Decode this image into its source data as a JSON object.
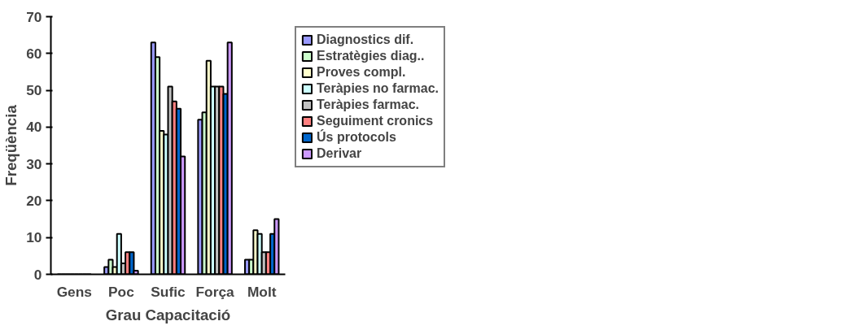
{
  "chart_data": {
    "type": "bar",
    "xlabel": "Grau Capacitació",
    "ylabel": "Freqüència",
    "categories": [
      "Gens",
      "Poc",
      "Sufic",
      "Força",
      "Molt"
    ],
    "ylim": [
      0,
      70
    ],
    "yticks": [
      0,
      10,
      20,
      30,
      40,
      50,
      60,
      70
    ],
    "grid": false,
    "legend": "right",
    "series": [
      {
        "name": "Diagnostics dif.",
        "color": "#9999ff",
        "values": [
          0,
          2,
          63,
          42,
          4
        ]
      },
      {
        "name": "Estratègies diag..",
        "color": "#ccffcc",
        "values": [
          0,
          4,
          59,
          44,
          4
        ]
      },
      {
        "name": "Proves compl.",
        "color": "#ffffcc",
        "values": [
          0,
          2,
          39,
          58,
          12
        ]
      },
      {
        "name": "Teràpies no farmac.",
        "color": "#ccffff",
        "values": [
          0,
          11,
          38,
          51,
          11
        ]
      },
      {
        "name": "Teràpies farmac.",
        "color": "#c0c0c0",
        "values": [
          0,
          3,
          51,
          51,
          6
        ]
      },
      {
        "name": "Seguiment cronics",
        "color": "#ff8080",
        "values": [
          0,
          6,
          47,
          51,
          6
        ]
      },
      {
        "name": "Ús protocols",
        "color": "#0066cc",
        "values": [
          0,
          6,
          45,
          49,
          11
        ]
      },
      {
        "name": "Derivar",
        "color": "#cc99ff",
        "values": [
          0,
          1,
          32,
          63,
          15
        ]
      }
    ]
  }
}
